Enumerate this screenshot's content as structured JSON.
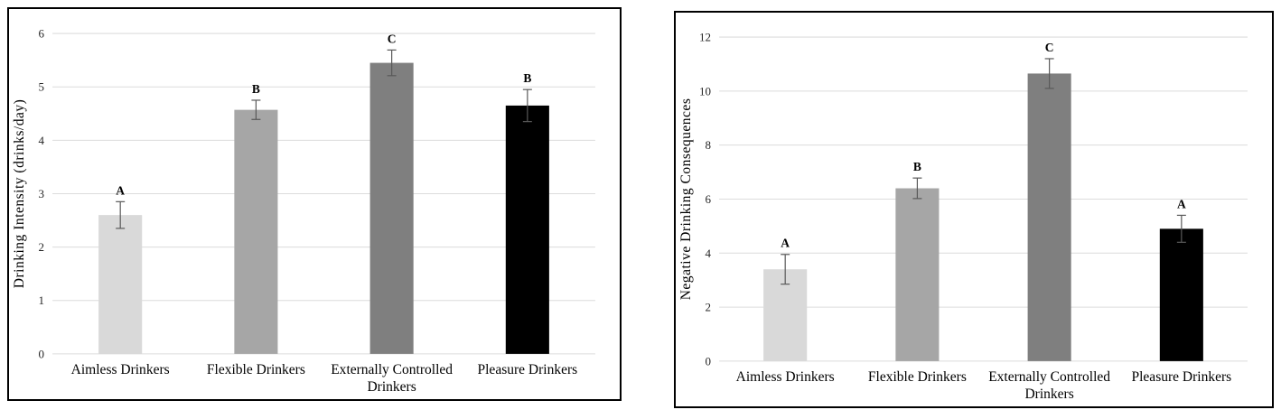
{
  "page": {
    "background": "#ffffff",
    "panel_border_color": "#000000"
  },
  "chart_data": [
    {
      "id": "drinking-intensity",
      "type": "bar",
      "ylabel": "Drinking Intensity (drinks/day)",
      "ylim": [
        0,
        6
      ],
      "yticks": [
        0,
        1,
        2,
        3,
        4,
        5,
        6
      ],
      "grid": "horizontal",
      "legend": "none",
      "categories": [
        "Aimless Drinkers",
        "Flexible Drinkers",
        "Externally Controlled\nDrinkers",
        "Pleasure Drinkers"
      ],
      "values": [
        2.6,
        4.57,
        5.45,
        4.65
      ],
      "error_bars": [
        0.25,
        0.18,
        0.24,
        0.3
      ],
      "sig_letters": [
        "A",
        "B",
        "C",
        "B"
      ],
      "bar_colors": [
        "#d9d9d9",
        "#a6a6a6",
        "#7f7f7f",
        "#000000"
      ],
      "gridline_color": "#dcdcdc",
      "error_bar_color": "#595959",
      "tick_label_color": "#262626",
      "text_color": "#000000"
    },
    {
      "id": "negative-drinking-consequences",
      "type": "bar",
      "ylabel": "Negative Drinking Consequences",
      "ylim": [
        0,
        12
      ],
      "yticks": [
        0,
        2,
        4,
        6,
        8,
        10,
        12
      ],
      "grid": "horizontal",
      "legend": "none",
      "categories": [
        "Aimless Drinkers",
        "Flexible Drinkers",
        "Externally Controlled\nDrinkers",
        "Pleasure Drinkers"
      ],
      "values": [
        3.4,
        6.4,
        10.65,
        4.9
      ],
      "error_bars": [
        0.55,
        0.38,
        0.55,
        0.5
      ],
      "sig_letters": [
        "A",
        "B",
        "C",
        "A"
      ],
      "bar_colors": [
        "#d9d9d9",
        "#a6a6a6",
        "#7f7f7f",
        "#000000"
      ],
      "gridline_color": "#dcdcdc",
      "error_bar_color": "#595959",
      "tick_label_color": "#262626",
      "text_color": "#000000"
    }
  ]
}
